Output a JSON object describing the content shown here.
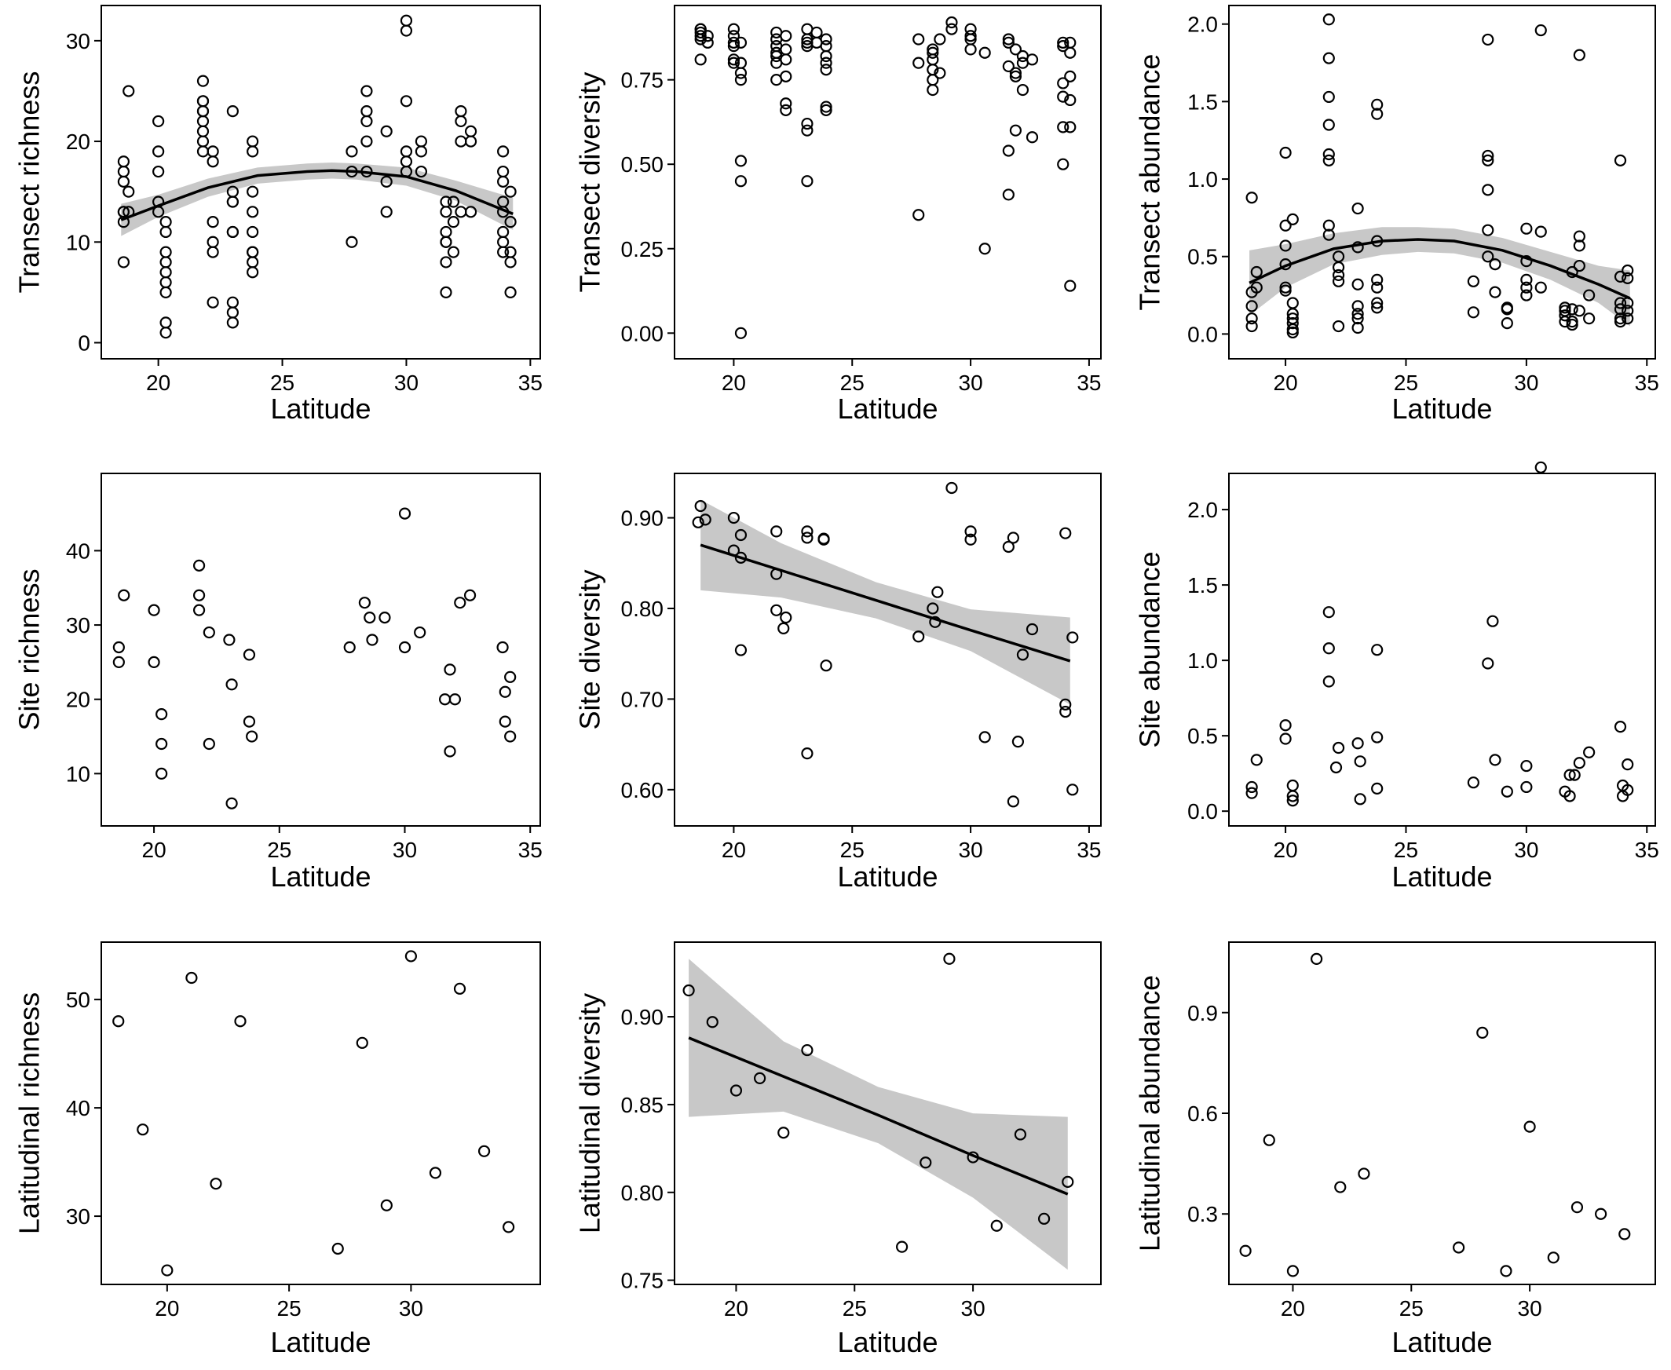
{
  "chart_data": [
    {
      "type": "scatter",
      "x_label": "Latitude",
      "y_label": "Transect richness",
      "x": [
        18.6,
        18.6,
        18.6,
        18.6,
        18.6,
        18.6,
        18.6,
        18.8,
        18.8,
        18.8,
        20,
        20,
        20,
        20,
        20,
        20.3,
        20.3,
        20.3,
        20.3,
        20.3,
        20.3,
        20.3,
        20.3,
        20.3,
        21.8,
        21.8,
        21.8,
        21.8,
        21.8,
        21.8,
        21.8,
        21.8,
        21.8,
        22.2,
        22.2,
        22.2,
        22.2,
        22.2,
        22.2,
        23,
        23,
        23,
        23,
        23,
        23,
        23,
        23,
        23,
        23.8,
        23.8,
        23.8,
        23.8,
        23.8,
        23.8,
        23.8,
        23.8,
        23.8,
        27.8,
        27.8,
        27.8,
        28.4,
        28.4,
        28.4,
        28.4,
        28.4,
        29.2,
        29.2,
        29.2,
        30,
        30,
        30,
        30,
        30,
        30,
        30.6,
        30.6,
        30.6,
        31.6,
        31.6,
        31.6,
        31.6,
        31.6,
        31.6,
        31.6,
        31.9,
        31.9,
        31.9,
        32.2,
        32.2,
        32.2,
        32.2,
        32.6,
        32.6,
        32.6,
        33.9,
        33.9,
        33.9,
        33.9,
        33.9,
        33.9,
        33.9,
        33.9,
        34.2,
        34.2,
        34.2,
        34.2,
        34.2
      ],
      "values": [
        8,
        12,
        13,
        13,
        16,
        17,
        18,
        25,
        15,
        13,
        22,
        19,
        17,
        14,
        13,
        12,
        11,
        9,
        8,
        7,
        6,
        5,
        2,
        1,
        26,
        24,
        24,
        23,
        23,
        22,
        21,
        20,
        19,
        19,
        18,
        12,
        10,
        9,
        4,
        23,
        15,
        14,
        14,
        11,
        11,
        4,
        3,
        2,
        20,
        19,
        15,
        13,
        11,
        9,
        9,
        8,
        7,
        19,
        17,
        10,
        25,
        23,
        22,
        20,
        17,
        21,
        16,
        13,
        32,
        31,
        24,
        19,
        18,
        17,
        20,
        19,
        17,
        14,
        13,
        11,
        10,
        10,
        8,
        5,
        14,
        12,
        9,
        23,
        22,
        20,
        13,
        21,
        20,
        13,
        19,
        17,
        16,
        14,
        13,
        11,
        10,
        9,
        15,
        12,
        9,
        8,
        5
      ],
      "fit": {
        "x": [
          18.5,
          20,
          22,
          24,
          26,
          27,
          28,
          30,
          32,
          34.3
        ],
        "values": [
          12.2,
          13.6,
          15.4,
          16.6,
          17,
          17.1,
          17,
          16.5,
          15.1,
          12.8
        ],
        "lower": [
          10.6,
          12.5,
          14.5,
          15.8,
          16.2,
          16.3,
          16.2,
          15.6,
          14.1,
          11.2
        ],
        "upper": [
          13.8,
          14.7,
          16.3,
          17.4,
          17.8,
          17.9,
          17.8,
          17.4,
          16.1,
          14.4
        ]
      },
      "xlim": [
        17.7,
        35.4
      ],
      "xticks": [
        20,
        25,
        30,
        35
      ],
      "ylim": [
        -1.6,
        33.5
      ],
      "yticks": [
        0,
        10,
        20,
        30
      ]
    },
    {
      "type": "scatter",
      "x_label": "Latitude",
      "y_label": "Transect diversity",
      "x": [
        18.6,
        18.6,
        18.6,
        18.6,
        18.6,
        18.6,
        18.9,
        18.9,
        20,
        20,
        20,
        20,
        20,
        20,
        20.3,
        20.3,
        20.3,
        20.3,
        20.3,
        20.3,
        20.3,
        21.8,
        21.8,
        21.8,
        21.8,
        21.8,
        21.8,
        21.8,
        22.2,
        22.2,
        22.2,
        22.2,
        22.2,
        22.2,
        23.1,
        23.1,
        23.1,
        23.1,
        23.1,
        23.1,
        23.1,
        23.5,
        23.5,
        23.9,
        23.9,
        23.9,
        23.9,
        23.9,
        23.9,
        23.9,
        27.8,
        27.8,
        27.8,
        28.4,
        28.4,
        28.4,
        28.4,
        28.4,
        28.4,
        28.7,
        28.7,
        29.2,
        29.2,
        30,
        30,
        30,
        30,
        30.6,
        30.6,
        31.6,
        31.6,
        31.6,
        31.6,
        31.6,
        31.9,
        31.9,
        31.9,
        31.9,
        32.2,
        32.2,
        32.2,
        32.6,
        32.6,
        33.9,
        33.9,
        33.9,
        33.9,
        33.9,
        33.9,
        34.2,
        34.2,
        34.2,
        34.2,
        34.2,
        34.2
      ],
      "values": [
        0.81,
        0.87,
        0.88,
        0.89,
        0.9,
        0.9,
        0.86,
        0.88,
        0.9,
        0.88,
        0.86,
        0.85,
        0.81,
        0.8,
        0.86,
        0.8,
        0.77,
        0.75,
        0.51,
        0.45,
        0,
        0.89,
        0.87,
        0.85,
        0.83,
        0.82,
        0.8,
        0.75,
        0.88,
        0.84,
        0.81,
        0.76,
        0.68,
        0.66,
        0.9,
        0.87,
        0.86,
        0.85,
        0.62,
        0.6,
        0.45,
        0.89,
        0.86,
        0.87,
        0.85,
        0.82,
        0.8,
        0.78,
        0.67,
        0.66,
        0.87,
        0.8,
        0.35,
        0.84,
        0.83,
        0.81,
        0.78,
        0.75,
        0.72,
        0.87,
        0.77,
        0.92,
        0.9,
        0.9,
        0.88,
        0.87,
        0.84,
        0.83,
        0.25,
        0.87,
        0.86,
        0.79,
        0.54,
        0.41,
        0.84,
        0.77,
        0.6,
        0.76,
        0.82,
        0.72,
        0.8,
        0.81,
        0.58,
        0.86,
        0.85,
        0.74,
        0.7,
        0.61,
        0.5,
        0.86,
        0.83,
        0.76,
        0.69,
        0.61,
        0.14
      ],
      "xlim": [
        17.5,
        35.5
      ],
      "xticks": [
        20,
        25,
        30,
        35
      ],
      "ylim": [
        -0.076,
        0.97
      ],
      "yticks": [
        {
          "value": 0,
          "label": "0.00"
        },
        0.25,
        {
          "value": 0.5,
          "label": "0.50"
        },
        0.75
      ]
    },
    {
      "type": "scatter",
      "x_label": "Latitude",
      "y_label": "Transect abundance",
      "x": [
        18.6,
        18.6,
        18.6,
        18.6,
        18.6,
        18.8,
        18.8,
        20,
        20,
        20,
        20,
        20,
        20,
        20.3,
        20.3,
        20.3,
        20.3,
        20.3,
        20.3,
        20.3,
        21.8,
        21.8,
        21.8,
        21.8,
        21.8,
        21.8,
        21.8,
        21.8,
        22.2,
        22.2,
        22.2,
        22.2,
        22.2,
        23,
        23,
        23,
        23,
        23,
        23,
        23,
        23.8,
        23.8,
        23.8,
        23.8,
        23.8,
        23.8,
        23.8,
        27.8,
        27.8,
        28.4,
        28.4,
        28.4,
        28.4,
        28.4,
        28.4,
        28.7,
        28.7,
        29.2,
        29.2,
        29.2,
        30,
        30,
        30,
        30,
        30,
        30.6,
        30.6,
        30.6,
        31.6,
        31.6,
        31.6,
        31.6,
        31.9,
        31.9,
        31.9,
        31.9,
        32.2,
        32.2,
        32.2,
        32.2,
        32.2,
        32.6,
        32.6,
        33.9,
        33.9,
        33.9,
        33.9,
        33.9,
        33.9,
        34.2,
        34.2,
        34.2,
        34.2,
        34.2
      ],
      "values": [
        0.88,
        0.27,
        0.18,
        0.1,
        0.05,
        0.4,
        0.3,
        1.17,
        0.7,
        0.57,
        0.45,
        0.3,
        0.28,
        0.74,
        0.2,
        0.13,
        0.1,
        0.07,
        0.03,
        0.01,
        2.03,
        1.78,
        1.53,
        1.35,
        1.16,
        1.12,
        0.7,
        0.64,
        0.5,
        0.43,
        0.38,
        0.34,
        0.05,
        0.81,
        0.56,
        0.32,
        0.18,
        0.13,
        0.1,
        0.04,
        1.48,
        1.42,
        0.6,
        0.35,
        0.3,
        0.2,
        0.17,
        0.34,
        0.14,
        1.9,
        1.15,
        1.12,
        0.93,
        0.67,
        0.5,
        0.45,
        0.27,
        0.17,
        0.16,
        0.07,
        0.68,
        0.47,
        0.35,
        0.3,
        0.25,
        1.96,
        0.66,
        0.3,
        0.17,
        0.15,
        0.12,
        0.08,
        0.4,
        0.16,
        0.08,
        0.06,
        1.8,
        0.63,
        0.57,
        0.44,
        0.15,
        0.25,
        0.1,
        1.12,
        0.37,
        0.2,
        0.16,
        0.1,
        0.08,
        0.41,
        0.36,
        0.2,
        0.15,
        0.1
      ],
      "fit": {
        "x": [
          18.5,
          20,
          22,
          24,
          25.5,
          27,
          29,
          31,
          33,
          34.3
        ],
        "values": [
          0.33,
          0.44,
          0.55,
          0.6,
          0.61,
          0.6,
          0.54,
          0.44,
          0.32,
          0.23
        ],
        "lower": [
          0.12,
          0.3,
          0.45,
          0.51,
          0.53,
          0.52,
          0.46,
          0.35,
          0.2,
          0.05
        ],
        "upper": [
          0.54,
          0.58,
          0.65,
          0.69,
          0.69,
          0.68,
          0.62,
          0.53,
          0.44,
          0.41
        ]
      },
      "xlim": [
        17.65,
        35.35
      ],
      "xticks": [
        20,
        25,
        30,
        35
      ],
      "ylim": [
        -0.16,
        2.12
      ],
      "yticks": [
        {
          "value": 0,
          "label": "0.0"
        },
        0.5,
        {
          "value": 1,
          "label": "1.0"
        },
        1.5,
        {
          "value": 2,
          "label": "2.0"
        }
      ]
    },
    {
      "type": "scatter",
      "x_label": "Latitude",
      "y_label": "Site richness",
      "x": [
        18.6,
        18.6,
        18.8,
        20,
        20,
        20.3,
        20.3,
        20.3,
        21.8,
        21.8,
        21.8,
        22.2,
        22.2,
        23,
        23.1,
        23.1,
        23.8,
        23.8,
        23.9,
        27.8,
        28.4,
        28.6,
        28.7,
        29.2,
        30,
        30,
        30.6,
        31.6,
        31.8,
        31.8,
        32,
        32.2,
        32.6,
        33.9,
        34,
        34,
        34.2,
        34.2
      ],
      "values": [
        27,
        25,
        34,
        32,
        25,
        18,
        14,
        10,
        38,
        34,
        32,
        29,
        14,
        28,
        22,
        6,
        26,
        17,
        15,
        27,
        33,
        31,
        28,
        31,
        45,
        27,
        29,
        20,
        24,
        13,
        20,
        33,
        34,
        27,
        21,
        17,
        23,
        15
      ],
      "xlim": [
        17.9,
        35.4
      ],
      "xticks": [
        20,
        25,
        30,
        35
      ],
      "ylim": [
        2.96,
        50.4
      ],
      "yticks": [
        10,
        20,
        30,
        40
      ]
    },
    {
      "type": "scatter",
      "x_label": "Latitude",
      "y_label": "Site diversity",
      "x": [
        18.5,
        18.6,
        18.8,
        20,
        20,
        20.3,
        20.3,
        20.3,
        21.8,
        21.8,
        21.8,
        22.2,
        22.1,
        23.1,
        23.1,
        23.1,
        23.8,
        23.8,
        23.9,
        27.8,
        28.4,
        28.5,
        28.6,
        29.2,
        30,
        30,
        30.6,
        31.6,
        31.8,
        31.8,
        32,
        32.2,
        32.6,
        34,
        34,
        34,
        34.3,
        34.3
      ],
      "values": [
        0.895,
        0.913,
        0.898,
        0.9,
        0.864,
        0.881,
        0.856,
        0.754,
        0.885,
        0.838,
        0.798,
        0.79,
        0.778,
        0.885,
        0.878,
        0.64,
        0.876,
        0.877,
        0.737,
        0.769,
        0.8,
        0.785,
        0.818,
        0.933,
        0.885,
        0.876,
        0.658,
        0.868,
        0.878,
        0.587,
        0.653,
        0.749,
        0.777,
        0.883,
        0.694,
        0.686,
        0.768,
        0.6
      ],
      "fit": {
        "x": [
          18.6,
          22,
          26,
          30,
          34.2
        ],
        "values": [
          0.87,
          0.842,
          0.809,
          0.776,
          0.742
        ],
        "lower": [
          0.82,
          0.812,
          0.789,
          0.753,
          0.694
        ],
        "upper": [
          0.92,
          0.872,
          0.829,
          0.799,
          0.79
        ]
      },
      "xlim": [
        17.5,
        35.5
      ],
      "xticks": [
        20,
        25,
        30,
        35
      ],
      "ylim": [
        0.56,
        0.949
      ],
      "yticks": [
        {
          "value": 0.6,
          "label": "0.60"
        },
        {
          "value": 0.7,
          "label": "0.70"
        },
        {
          "value": 0.8,
          "label": "0.80"
        },
        {
          "value": 0.9,
          "label": "0.90"
        }
      ]
    },
    {
      "type": "scatter",
      "x_label": "Latitude",
      "y_label": "Site abundance",
      "x": [
        18.6,
        18.6,
        18.8,
        20,
        20,
        20.3,
        20.3,
        20.3,
        21.8,
        21.8,
        21.8,
        22.2,
        22.1,
        23,
        23.1,
        23.1,
        23.8,
        23.8,
        23.8,
        27.8,
        28.4,
        28.6,
        28.7,
        29.2,
        30,
        30,
        30.6,
        31.6,
        31.8,
        31.8,
        32,
        32.2,
        32.6,
        33.9,
        34,
        34,
        34.2,
        34.2
      ],
      "values": [
        0.16,
        0.12,
        0.34,
        0.57,
        0.48,
        0.17,
        0.1,
        0.07,
        1.32,
        1.08,
        0.86,
        0.42,
        0.29,
        0.45,
        0.33,
        0.08,
        1.07,
        0.49,
        0.15,
        0.19,
        0.98,
        1.26,
        0.34,
        0.13,
        0.3,
        0.16,
        2.28,
        0.13,
        0.1,
        0.24,
        0.24,
        0.32,
        0.39,
        0.56,
        0.17,
        0.1,
        0.31,
        0.14
      ],
      "xlim": [
        17.65,
        35.35
      ],
      "xticks": [
        20,
        25,
        30,
        35
      ],
      "ylim": [
        -0.098,
        2.24
      ],
      "yticks": [
        {
          "value": 0,
          "label": "0.0"
        },
        0.5,
        {
          "value": 1,
          "label": "1.0"
        },
        1.5,
        {
          "value": 2,
          "label": "2.0"
        }
      ]
    },
    {
      "type": "scatter",
      "x_label": "Latitude",
      "y_label": "Latitudinal richness",
      "x": [
        18,
        19,
        20,
        21,
        22,
        23,
        27,
        28,
        29,
        30,
        31,
        32,
        33,
        34
      ],
      "values": [
        48,
        38,
        25,
        52,
        33,
        48,
        27,
        46,
        31,
        54,
        34,
        51,
        36,
        29
      ],
      "xlim": [
        17.3,
        35.3
      ],
      "xticks": [
        20,
        25,
        30
      ],
      "ylim": [
        23.7,
        55.3
      ],
      "yticks": [
        30,
        40,
        50
      ]
    },
    {
      "type": "scatter",
      "x_label": "Latitude",
      "y_label": "Latitudinal diversity",
      "x": [
        18,
        19,
        20,
        21,
        22,
        23,
        27,
        28,
        29,
        30,
        31,
        32,
        33,
        34
      ],
      "values": [
        0.915,
        0.897,
        0.858,
        0.865,
        0.834,
        0.881,
        0.769,
        0.817,
        0.933,
        0.82,
        0.781,
        0.833,
        0.785,
        0.806
      ],
      "fit": {
        "x": [
          18,
          22,
          26,
          30,
          34
        ],
        "values": [
          0.888,
          0.866,
          0.844,
          0.821,
          0.799
        ],
        "lower": [
          0.843,
          0.846,
          0.828,
          0.797,
          0.756
        ],
        "upper": [
          0.933,
          0.886,
          0.86,
          0.845,
          0.843
        ]
      },
      "xlim": [
        17.4,
        35.4
      ],
      "xticks": [
        20,
        25,
        30
      ],
      "ylim": [
        0.7476,
        0.9425
      ],
      "yticks": [
        0.75,
        {
          "value": 0.8,
          "label": "0.80"
        },
        0.85,
        {
          "value": 0.9,
          "label": "0.90"
        }
      ]
    },
    {
      "type": "scatter",
      "x_label": "Latitude",
      "y_label": "Latitudinal abundance",
      "x": [
        18,
        19,
        20,
        21,
        22,
        23,
        27,
        28,
        29,
        30,
        31,
        32,
        33,
        34
      ],
      "values": [
        0.19,
        0.52,
        0.13,
        1.06,
        0.38,
        0.42,
        0.2,
        0.84,
        0.13,
        0.56,
        0.17,
        0.32,
        0.3,
        0.24
      ],
      "xlim": [
        17.3,
        35.3
      ],
      "xticks": [
        20,
        25,
        30
      ],
      "ylim": [
        0.09,
        1.11
      ],
      "yticks": [
        0.3,
        0.6,
        0.9
      ]
    }
  ]
}
